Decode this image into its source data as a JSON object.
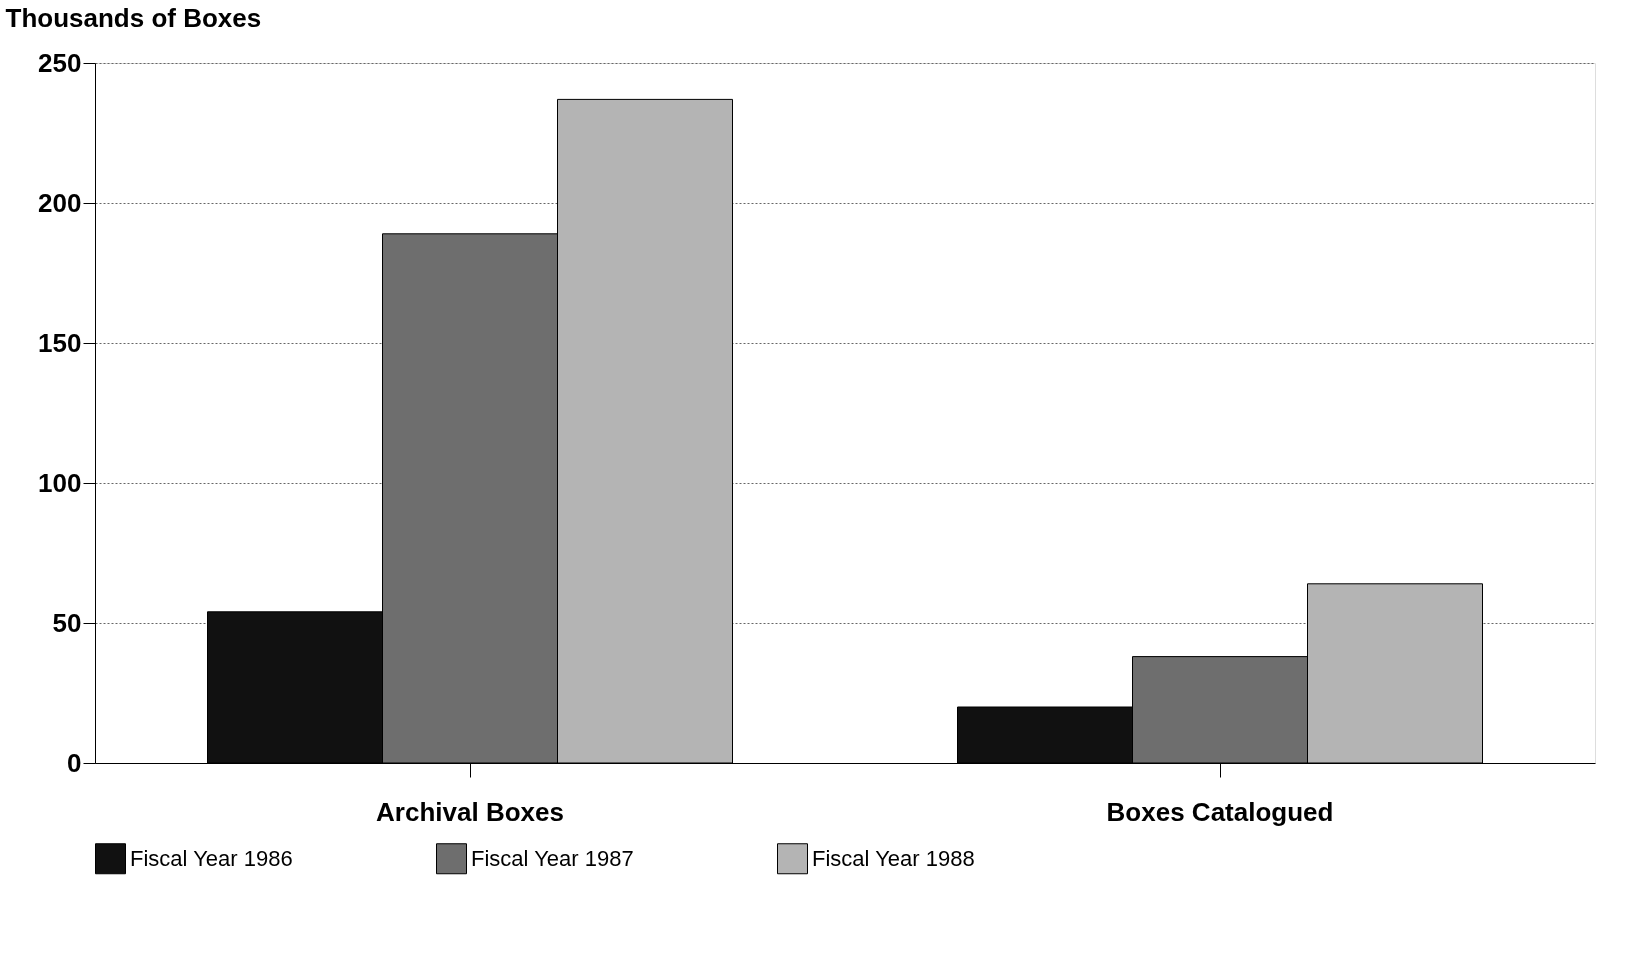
{
  "chart_data": {
    "type": "bar",
    "ylabel": "Thousands of Boxes",
    "categories": [
      "Archival Boxes",
      "Boxes Catalogued"
    ],
    "series": [
      {
        "name": "Fiscal Year 1986",
        "color": "#111111",
        "values": [
          54,
          20
        ]
      },
      {
        "name": "Fiscal Year 1987",
        "color": "#6e6e6e",
        "values": [
          189,
          38
        ]
      },
      {
        "name": "Fiscal Year 1988",
        "color": "#b4b4b4",
        "values": [
          237,
          64
        ]
      }
    ],
    "ylim": [
      0,
      250
    ],
    "yticks": [
      0,
      50,
      100,
      150,
      200,
      250
    ],
    "grid": "y",
    "legend": "bottom"
  }
}
